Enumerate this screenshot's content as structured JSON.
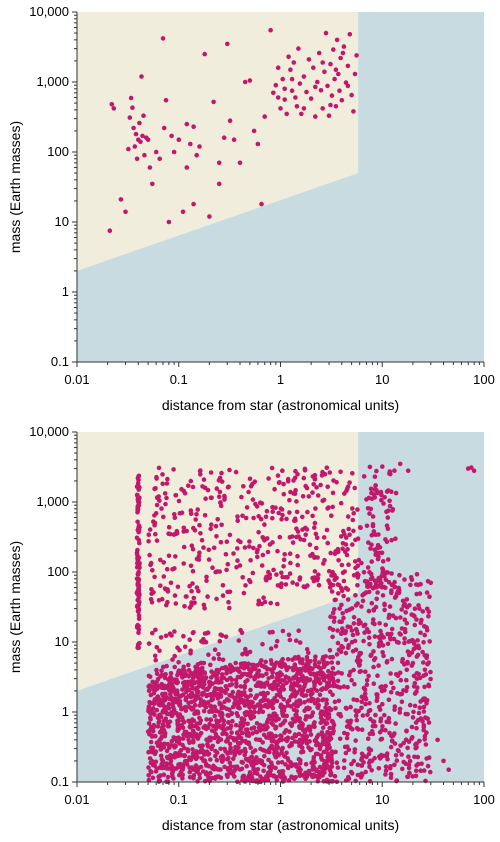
{
  "colors": {
    "background": "#ffffff",
    "region_upper": "#f0eddd",
    "region_lower": "#c8dbe0",
    "points": "#c2186b",
    "axis": "#333333"
  },
  "chart_data": [
    {
      "type": "scatter",
      "xlabel": "distance from star (astronomical units)",
      "ylabel": "mass (Earth masses)",
      "xscale": "log",
      "yscale": "log",
      "xlim": [
        0.01,
        100
      ],
      "ylim": [
        0.1,
        10000
      ],
      "xticks": [
        "0.01",
        "0.1",
        "1",
        "10",
        "100"
      ],
      "yticks": [
        "0.1",
        "1",
        "10",
        "100",
        "1,000",
        "10,000"
      ],
      "grid": false,
      "shaded_boundary": {
        "x": [
          0.01,
          5.8,
          5.8
        ],
        "y": [
          2,
          50,
          10000
        ]
      },
      "series": [
        {
          "points": [
            [
              0.021,
              7.5
            ],
            [
              0.022,
              480
            ],
            [
              0.023,
              420
            ],
            [
              0.027,
              21
            ],
            [
              0.03,
              14
            ],
            [
              0.032,
              110
            ],
            [
              0.033,
              310
            ],
            [
              0.034,
              590
            ],
            [
              0.035,
              430
            ],
            [
              0.036,
              220
            ],
            [
              0.037,
              120
            ],
            [
              0.038,
              180
            ],
            [
              0.039,
              80
            ],
            [
              0.04,
              150
            ],
            [
              0.041,
              260
            ],
            [
              0.042,
              140
            ],
            [
              0.043,
              1200
            ],
            [
              0.044,
              170
            ],
            [
              0.045,
              330
            ],
            [
              0.046,
              90
            ],
            [
              0.048,
              160
            ],
            [
              0.05,
              150
            ],
            [
              0.052,
              60
            ],
            [
              0.055,
              35
            ],
            [
              0.06,
              100
            ],
            [
              0.065,
              80
            ],
            [
              0.07,
              4200
            ],
            [
              0.072,
              220
            ],
            [
              0.075,
              550
            ],
            [
              0.08,
              10
            ],
            [
              0.085,
              170
            ],
            [
              0.09,
              100
            ],
            [
              0.1,
              150
            ],
            [
              0.11,
              14
            ],
            [
              0.12,
              250
            ],
            [
              0.12,
              60
            ],
            [
              0.13,
              130
            ],
            [
              0.14,
              18
            ],
            [
              0.14,
              230
            ],
            [
              0.15,
              90
            ],
            [
              0.16,
              120
            ],
            [
              0.18,
              2500
            ],
            [
              0.2,
              12
            ],
            [
              0.22,
              520
            ],
            [
              0.25,
              35
            ],
            [
              0.25,
              70
            ],
            [
              0.28,
              160
            ],
            [
              0.3,
              3500
            ],
            [
              0.32,
              280
            ],
            [
              0.35,
              150
            ],
            [
              0.4,
              70
            ],
            [
              0.45,
              1000
            ],
            [
              0.5,
              1050
            ],
            [
              0.55,
              200
            ],
            [
              0.6,
              130
            ],
            [
              0.65,
              18
            ],
            [
              0.7,
              320
            ],
            [
              0.8,
              5500
            ],
            [
              0.85,
              700
            ],
            [
              0.9,
              900
            ],
            [
              0.95,
              600
            ],
            [
              1.0,
              420
            ],
            [
              1.05,
              1100
            ],
            [
              1.1,
              800
            ],
            [
              1.15,
              350
            ],
            [
              1.2,
              2300
            ],
            [
              1.25,
              1500
            ],
            [
              1.3,
              750
            ],
            [
              1.35,
              1900
            ],
            [
              1.4,
              600
            ],
            [
              1.45,
              450
            ],
            [
              1.5,
              3000
            ],
            [
              1.55,
              950
            ],
            [
              1.6,
              350
            ],
            [
              1.7,
              1200
            ],
            [
              1.8,
              720
            ],
            [
              1.9,
              2100
            ],
            [
              2.0,
              580
            ],
            [
              2.1,
              1600
            ],
            [
              2.2,
              320
            ],
            [
              2.3,
              1000
            ],
            [
              2.4,
              2600
            ],
            [
              2.5,
              760
            ],
            [
              2.6,
              420
            ],
            [
              2.7,
              1400
            ],
            [
              2.8,
              5000
            ],
            [
              2.9,
              880
            ],
            [
              3.0,
              330
            ],
            [
              3.1,
              1800
            ],
            [
              3.2,
              640
            ],
            [
              3.3,
              2900
            ],
            [
              3.4,
              1100
            ],
            [
              3.5,
              450
            ],
            [
              3.6,
              4000
            ],
            [
              3.7,
              1300
            ],
            [
              3.8,
              750
            ],
            [
              3.9,
              2200
            ],
            [
              4.0,
              550
            ],
            [
              4.2,
              3200
            ],
            [
              4.4,
              980
            ],
            [
              4.6,
              1700
            ],
            [
              4.8,
              4800
            ],
            [
              5.0,
              650
            ],
            [
              5.2,
              380
            ],
            [
              5.4,
              1300
            ],
            [
              5.6,
              2400
            ],
            [
              0.95,
              1600
            ],
            [
              1.1,
              560
            ],
            [
              1.3,
              1100
            ],
            [
              1.7,
              420
            ],
            [
              2.2,
              850
            ],
            [
              2.6,
              1900
            ],
            [
              3.1,
              470
            ],
            [
              3.5,
              1500
            ],
            [
              4.1,
              2600
            ],
            [
              4.6,
              880
            ]
          ]
        }
      ]
    },
    {
      "type": "scatter",
      "xlabel": "distance from star (astronomical units)",
      "ylabel": "mass (Earth masses)",
      "xscale": "log",
      "yscale": "log",
      "xlim": [
        0.01,
        100
      ],
      "ylim": [
        0.1,
        10000
      ],
      "xticks": [
        "0.01",
        "0.1",
        "1",
        "10",
        "100"
      ],
      "yticks": [
        "0.1",
        "1",
        "10",
        "100",
        "1,000",
        "10,000"
      ],
      "grid": false,
      "shaded_boundary": {
        "x": [
          0.01,
          5.8,
          5.8
        ],
        "y": [
          2,
          50,
          10000
        ]
      },
      "series": [
        {
          "points": [
            [
              70,
              3000
            ],
            [
              80,
              2800
            ],
            [
              75,
              3100
            ],
            [
              45,
              0.15
            ],
            [
              40,
              0.2
            ],
            [
              35,
              0.4
            ],
            [
              30,
              70
            ],
            [
              28,
              0.8
            ],
            [
              25,
              1.5
            ],
            [
              22,
              3
            ],
            [
              20,
              5
            ],
            [
              18,
              2800
            ],
            [
              15,
              3500
            ],
            [
              12,
              2500
            ],
            [
              10,
              3200
            ]
          ]
        }
      ]
    }
  ]
}
